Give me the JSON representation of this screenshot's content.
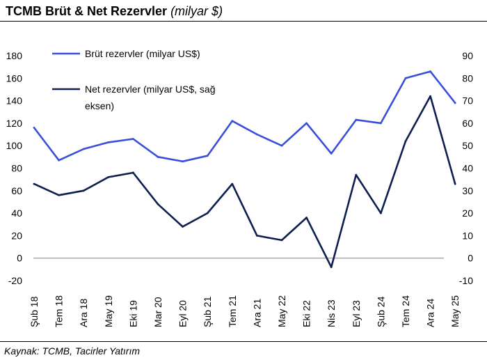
{
  "header": {
    "title": "TCMB Brüt & Net Rezervler",
    "subtitle": "(milyar $)"
  },
  "footer": {
    "source": "Kaynak: TCMB, Tacirler Yatırım"
  },
  "colors": {
    "gross": "#3a4fd9",
    "net": "#0d1f4f"
  },
  "chart_data": {
    "type": "line",
    "x_categories": [
      "Şub 18",
      "Tem 18",
      "Ara 18",
      "May 19",
      "Eki 19",
      "Mar 20",
      "Eyl 20",
      "Şub 21",
      "Tem 21",
      "Ara 21",
      "May 22",
      "Eki 22",
      "Nis 23",
      "Eyl 23",
      "Şub 24",
      "Tem 24",
      "Ara 24",
      "May 25"
    ],
    "y_left": {
      "ticks": [
        "180",
        "160",
        "140",
        "120",
        "100",
        "80",
        "60",
        "40",
        "20",
        "0",
        "-20"
      ],
      "range": [
        -20,
        180
      ]
    },
    "y_right": {
      "ticks": [
        "90",
        "80",
        "70",
        "60",
        "50",
        "40",
        "30",
        "20",
        "10",
        "0",
        "-10"
      ],
      "range": [
        -10,
        90
      ]
    },
    "grid": false,
    "legend_position": "top-left",
    "series": [
      {
        "name": "Brüt rezervler (milyar US$)",
        "axis": "left",
        "x": [
          "Şub 18",
          "Tem 18",
          "Ara 18",
          "May 19",
          "Eki 19",
          "Mar 20",
          "Eyl 20",
          "Şub 21",
          "Tem 21",
          "Ara 21",
          "May 22",
          "Eki 22",
          "Nis 23",
          "Eyl 23",
          "Şub 24",
          "Tem 24",
          "Ara 24",
          "May 25"
        ],
        "y": [
          116,
          87,
          97,
          103,
          106,
          90,
          86,
          91,
          122,
          110,
          100,
          120,
          93,
          123,
          120,
          160,
          166,
          138
        ]
      },
      {
        "name": "Net rezervler (milyar US$, sağ",
        "name_line2": "eksen)",
        "axis": "right",
        "x": [
          "Şub 18",
          "Tem 18",
          "Ara 18",
          "May 19",
          "Eki 19",
          "Mar 20",
          "Eyl 20",
          "Şub 21",
          "Tem 21",
          "Ara 21",
          "May 22",
          "Eki 22",
          "Nis 23",
          "Eyl 23",
          "Şub 24",
          "Tem 24",
          "Ara 24",
          "May 25"
        ],
        "y": [
          33,
          28,
          30,
          36,
          38,
          24,
          14,
          20,
          33,
          10,
          8,
          18,
          -4,
          37,
          20,
          52,
          72,
          33
        ]
      }
    ]
  }
}
